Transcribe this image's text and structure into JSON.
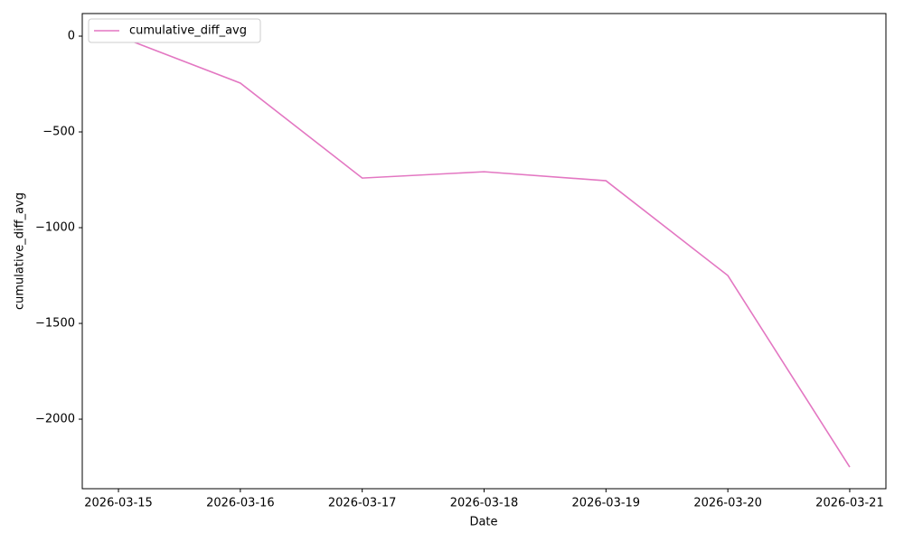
{
  "chart_data": {
    "type": "line",
    "xlabel": "Date",
    "ylabel": "cumulative_diff_avg",
    "categories": [
      "2026-03-15",
      "2026-03-16",
      "2026-03-17",
      "2026-03-18",
      "2026-03-19",
      "2026-03-20",
      "2026-03-21"
    ],
    "series": [
      {
        "name": "cumulative_diff_avg",
        "color": "#e377c2",
        "values": [
          0,
          -245,
          -741,
          -708,
          -755,
          -1250,
          -2250
        ]
      }
    ],
    "ylim": [
      -2363,
      118
    ],
    "yticks": [
      0,
      {
        "value": -500,
        "label": "−500"
      },
      {
        "value": -1000,
        "label": "−1000"
      },
      {
        "value": -1500,
        "label": "−1500"
      },
      {
        "value": -2000,
        "label": "−2000"
      }
    ],
    "legend": "upper left",
    "grid": false
  }
}
